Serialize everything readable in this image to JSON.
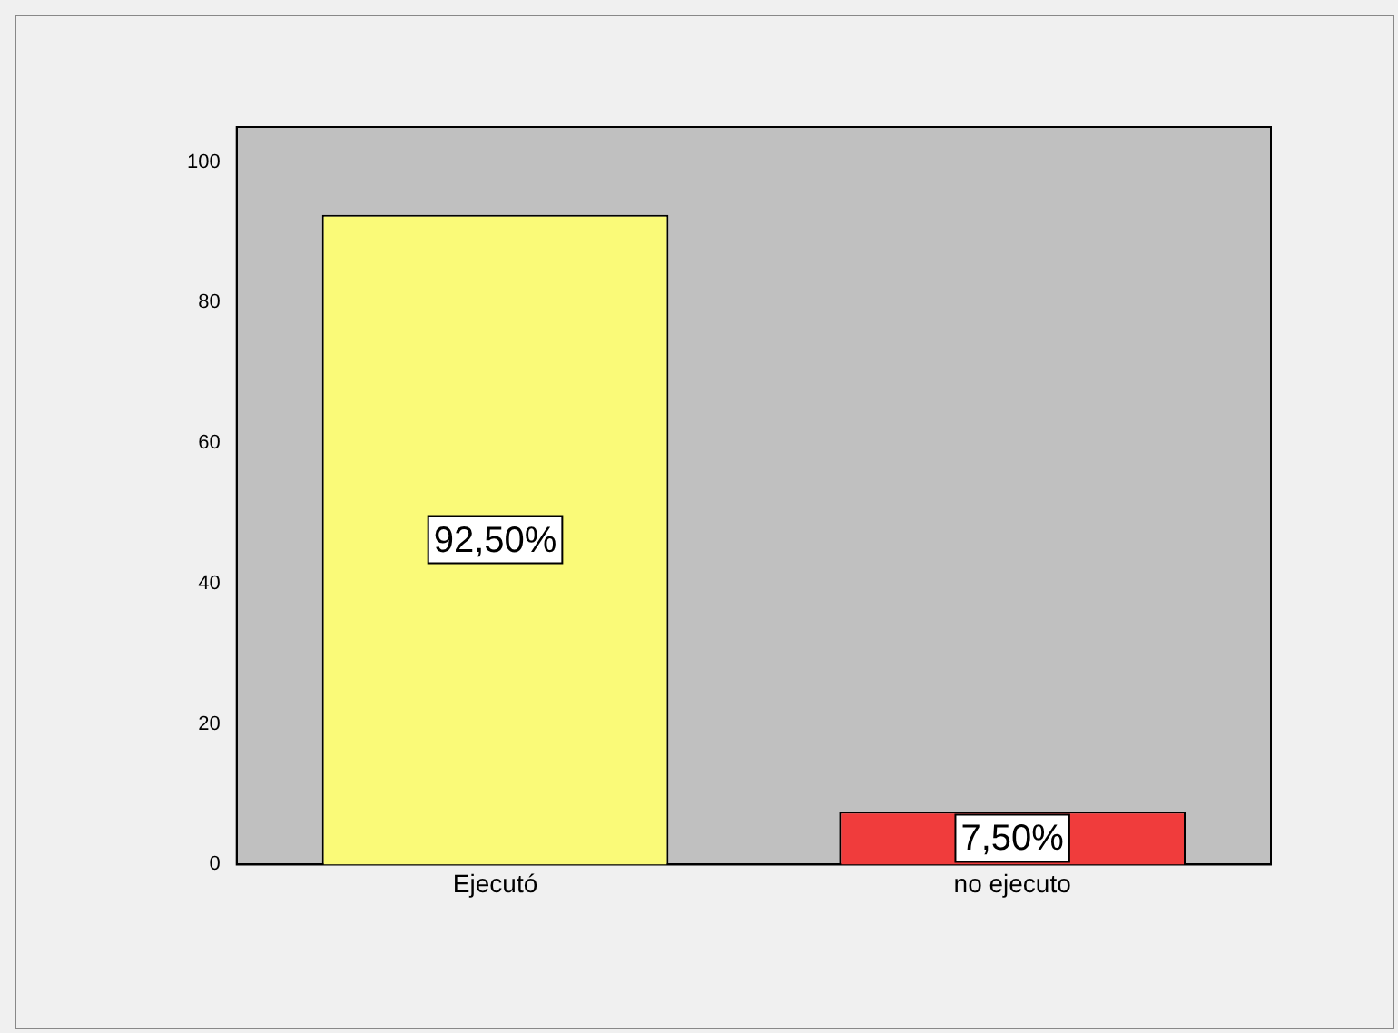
{
  "chart_data": {
    "type": "bar",
    "categories": [
      "Ejecutó",
      "no ejecuto"
    ],
    "values": [
      92.5,
      7.5
    ],
    "colors": [
      "#fafa78",
      "#f03c3c"
    ],
    "value_labels": [
      "92,50%",
      "7,50%"
    ],
    "ylim": [
      0,
      105
    ],
    "yticks": [
      0,
      20,
      40,
      60,
      80,
      100
    ],
    "grid": false,
    "legend": false
  }
}
